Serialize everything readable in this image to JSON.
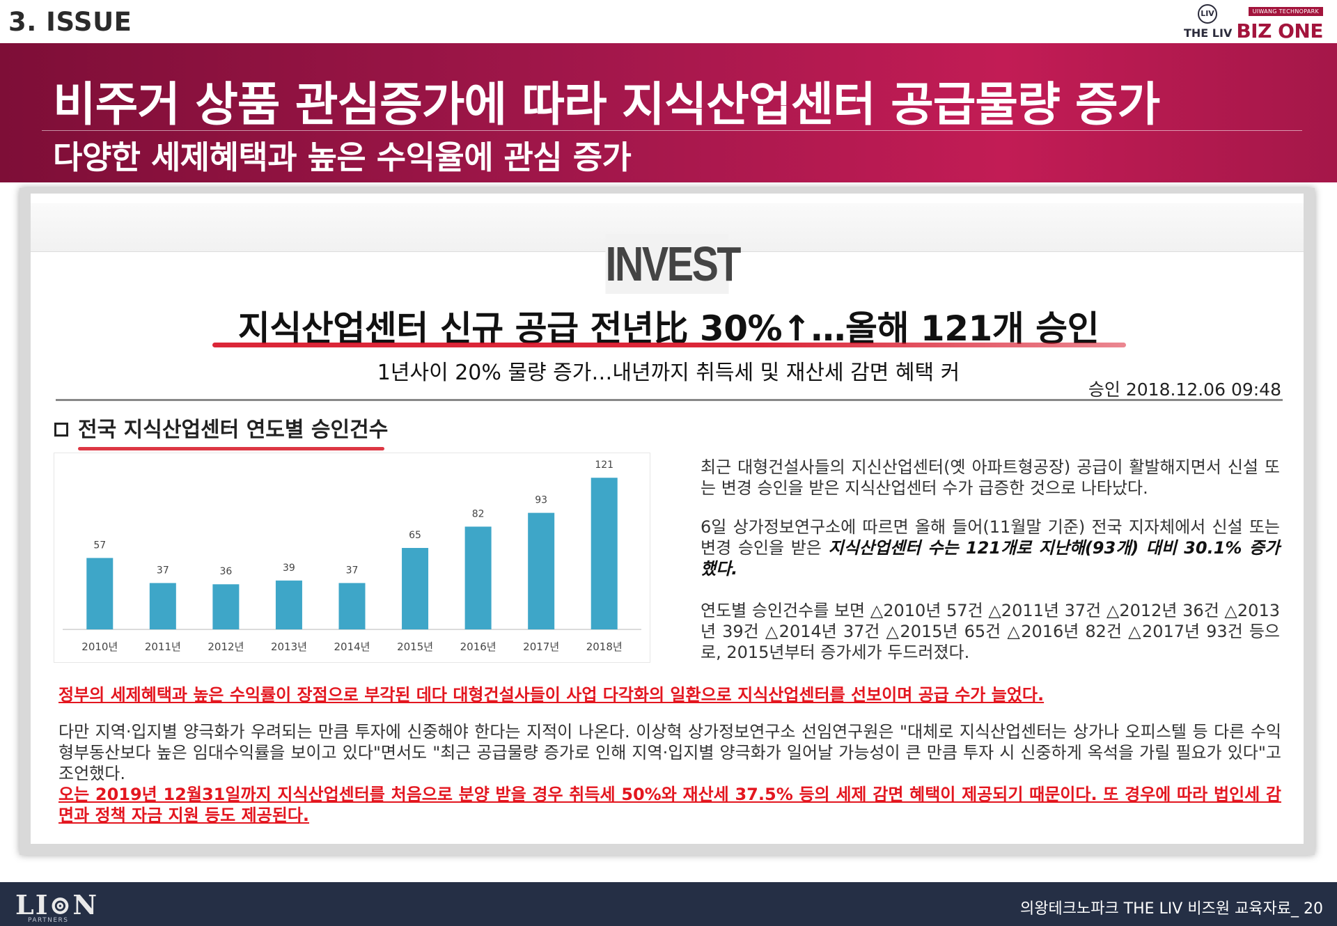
{
  "header": {
    "section": "3. ISSUE",
    "logo": {
      "mark": "LIV",
      "tag": "UIWANG TECHNOPARK",
      "the_liv": "THE LIV",
      "biz_one": "BIZ ONE"
    }
  },
  "banner": {
    "title": "비주거 상품 관심증가에 따라 지식산업센터 공급물량 증가",
    "subtitle": "다양한 세제혜택과 높은 수익율에 관심 증가"
  },
  "article": {
    "publisher": "INVEST",
    "headline": "지식산업센터 신규 공급 전년比 30%↑…올해 121개 승인",
    "subheadline": "1년사이 20% 물량 증가…내년까지 취득세 및 재산세 감면 혜택 커",
    "dateline": "승인 2018.12.06   09:48",
    "box_title": "전국 지식산업센터 연도별 승인건수",
    "para1": "최근 대형건설사들의 지신산업센터(옛 아파트형공장) 공급이 활발해지면서 신설 또는 변경 승인을 받은 지식산업센터 수가 급증한 것으로 나타났다.",
    "para2_plain": "6일 상가정보연구소에 따르면 올해 들어(11월말 기준) 전국 지자체에서 신설 또는 변경 승인을 받은 ",
    "para2_bold": "지식산업센터 수는 121개로 지난해(93개) 대비 30.1% 증가했다.",
    "para3": "연도별 승인건수를 보면 △2010년 57건 △2011년 37건 △2012년 36건 △2013년 39건 △2014년 37건 △2015년 65건 △2016년 82건 △2017년 93건 등으로, 2015년부터 증가세가 두드러졌다.",
    "red_line": "정부의 세제혜택과 높은 수익률이 장점으로 부각된 데다 대형건설사들이 사업 다각화의 일환으로 지식산업센터를 선보이며 공급 수가 늘었다.",
    "para_bottom": "다만 지역·입지별 양극화가 우려되는 만큼 투자에 신중해야 한다는 지적이 나온다. 이상혁 상가정보연구소 선임연구원은 \"대체로 지식산업센터는 상가나 오피스텔 등 다른 수익형부동산보다 높은 임대수익률을 보이고 있다\"면서도 \"최근 공급물량 증가로 인해 지역·입지별 양극화가 일어날 가능성이 큰 만큼 투자 시 신중하게 옥석을 가릴 필요가 있다\"고 조언했다.",
    "red_para": "오는 2019년 12월31일까지 지식산업센터를 처음으로 분양 받을 경우 취득세 50%와 재산세 37.5% 등의 세제 감면 혜택이 제공되기 때문이다. 또 경우에 따라 법인세 감면과 정책 자금 지원 등도 제공된다."
  },
  "chart_data": {
    "type": "bar",
    "categories": [
      "2010년",
      "2011년",
      "2012년",
      "2013년",
      "2014년",
      "2015년",
      "2016년",
      "2017년",
      "2018년"
    ],
    "values": [
      57,
      37,
      36,
      39,
      37,
      65,
      82,
      93,
      121
    ],
    "title": "",
    "xlabel": "",
    "ylabel": "",
    "ylim": [
      0,
      125
    ],
    "bar_color": "#3ea6c8",
    "grid": false,
    "data_labels": true
  },
  "footer": {
    "brand": "LI⊚N",
    "partners": "PARTNERS",
    "right": "의왕테크노파크 THE LIV 비즈원 교육자료_  20"
  },
  "colors": {
    "accent": "#a3174b",
    "red_text": "#e3161f",
    "footer_bg": "#252f45"
  }
}
